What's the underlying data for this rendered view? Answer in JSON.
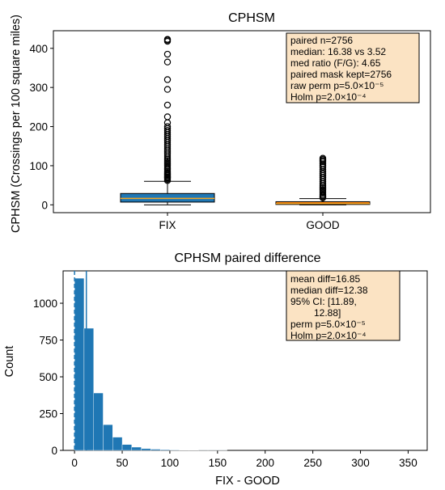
{
  "chart_data": [
    {
      "type": "box",
      "title": "CPHSM",
      "ylabel": "CPHSM (Crossings per 100 square miles)",
      "categories": [
        "FIX",
        "GOOD"
      ],
      "ylim": [
        -20,
        445
      ],
      "yticks": [
        0,
        100,
        200,
        300,
        400
      ],
      "colors": {
        "FIX": "#1f77b4",
        "GOOD": "#ff7f0e",
        "median": "#f5a623"
      },
      "boxes": [
        {
          "name": "FIX",
          "whislo": 0,
          "q1": 7,
          "med": 16.38,
          "q3": 29,
          "whishi": 60,
          "fliers": [
            62,
            65,
            68,
            70,
            72,
            75,
            78,
            80,
            83,
            86,
            90,
            93,
            96,
            100,
            104,
            108,
            112,
            116,
            120,
            125,
            130,
            135,
            140,
            145,
            150,
            155,
            160,
            165,
            170,
            175,
            180,
            185,
            190,
            195,
            200,
            210,
            225,
            255,
            295,
            320,
            365,
            385,
            418,
            421,
            423
          ]
        },
        {
          "name": "GOOD",
          "whislo": 0,
          "q1": 1,
          "med": 3.52,
          "q3": 8,
          "whishi": 16,
          "fliers": [
            18,
            20,
            23,
            26,
            30,
            34,
            38,
            42,
            46,
            50,
            55,
            60,
            65,
            70,
            75,
            80,
            85,
            90,
            96,
            100,
            105,
            110,
            113,
            116,
            119
          ]
        }
      ],
      "annotation": [
        "paired n=2756",
        "median: 16.38 vs 3.52",
        "med ratio (F/G): 4.65",
        "paired mask kept=2756",
        "raw perm p=5.0×10⁻⁵",
        "Holm p=2.0×10⁻⁴"
      ]
    },
    {
      "type": "histogram",
      "title": "CPHSM paired difference",
      "xlabel": "FIX - GOOD",
      "ylabel": "Count",
      "xlim": [
        -12,
        370
      ],
      "ylim": [
        0,
        1220
      ],
      "xticks": [
        0,
        50,
        100,
        150,
        200,
        250,
        300,
        350
      ],
      "yticks": [
        0,
        250,
        500,
        750,
        1000
      ],
      "bin_width": 10,
      "bin_start": 0,
      "counts": [
        1170,
        830,
        390,
        175,
        90,
        40,
        22,
        12,
        8,
        5,
        3,
        2,
        2,
        1,
        1,
        1,
        0,
        0,
        0,
        0,
        0,
        0,
        0,
        0,
        0,
        0,
        0,
        0,
        0,
        0,
        0,
        0,
        0,
        0,
        0,
        0
      ],
      "color": "#1f77b4",
      "vlines": [
        {
          "x": 0,
          "style": "dashed"
        },
        {
          "x": 12.38,
          "style": "solid"
        }
      ],
      "annotation": [
        "mean diff=16.85",
        "median diff=12.38",
        "95% CI: [11.89,",
        "12.88]",
        "perm p=5.0×10⁻⁵",
        "Holm p=2.0×10⁻⁴"
      ]
    }
  ]
}
